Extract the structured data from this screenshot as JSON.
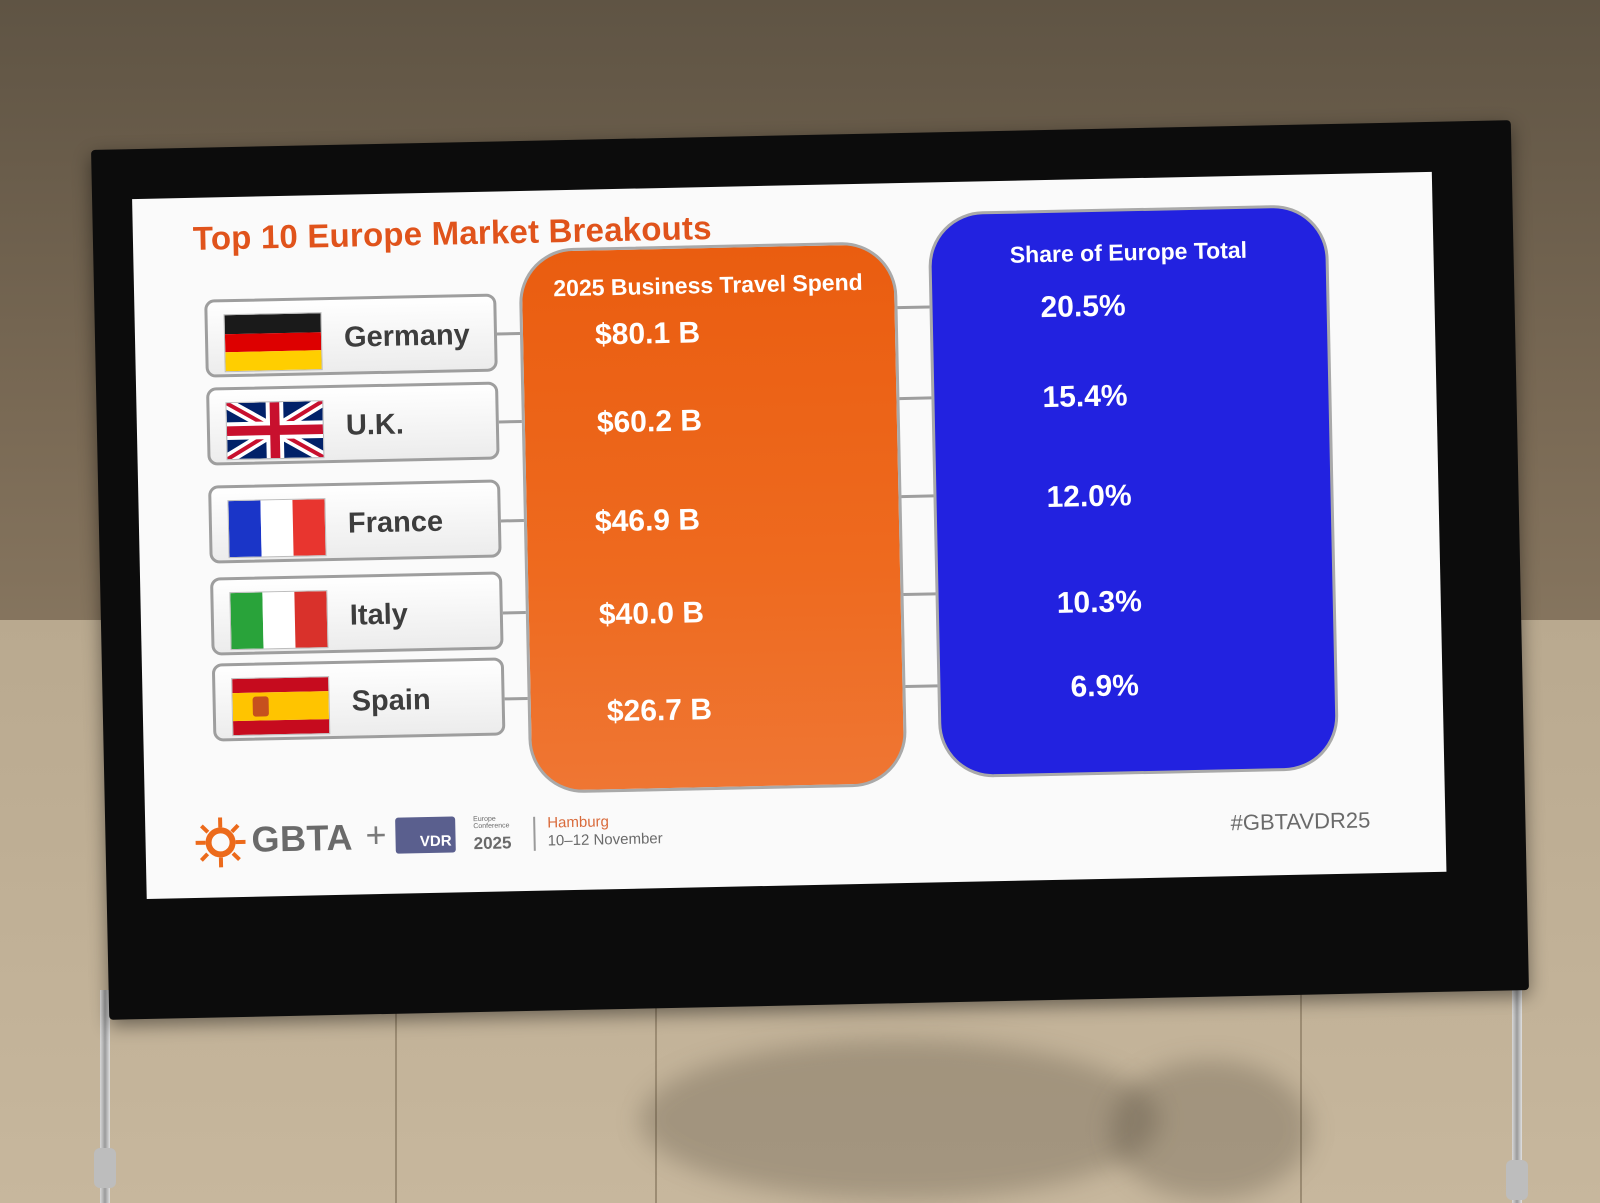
{
  "slide": {
    "title": "Top 10 Europe Market Breakouts",
    "spend_header": "2025 Business Travel Spend",
    "share_header": "Share of Europe Total",
    "rows": [
      {
        "country": "Germany",
        "flag": "germany-flag",
        "spend": "$80.1 B",
        "share": "20.5%"
      },
      {
        "country": "U.K.",
        "flag": "uk-flag",
        "spend": "$60.2 B",
        "share": "15.4%"
      },
      {
        "country": "France",
        "flag": "france-flag",
        "spend": "$46.9 B",
        "share": "12.0%"
      },
      {
        "country": "Italy",
        "flag": "italy-flag",
        "spend": "$40.0 B",
        "share": "10.3%"
      },
      {
        "country": "Spain",
        "flag": "spain-flag",
        "spend": "$26.7 B",
        "share": "6.9%"
      }
    ],
    "colors": {
      "title": "#e0531b",
      "spend_column": "#ec6518",
      "share_column": "#2222e0"
    }
  },
  "footer": {
    "gbta_label": "GBTA",
    "plus": "+",
    "vdr_label": "VDR",
    "conference_small": "Europe Conference",
    "conference_year": "2025",
    "city": "Hamburg",
    "dates": "10–12 November",
    "hashtag": "#GBTAVDR25"
  }
}
